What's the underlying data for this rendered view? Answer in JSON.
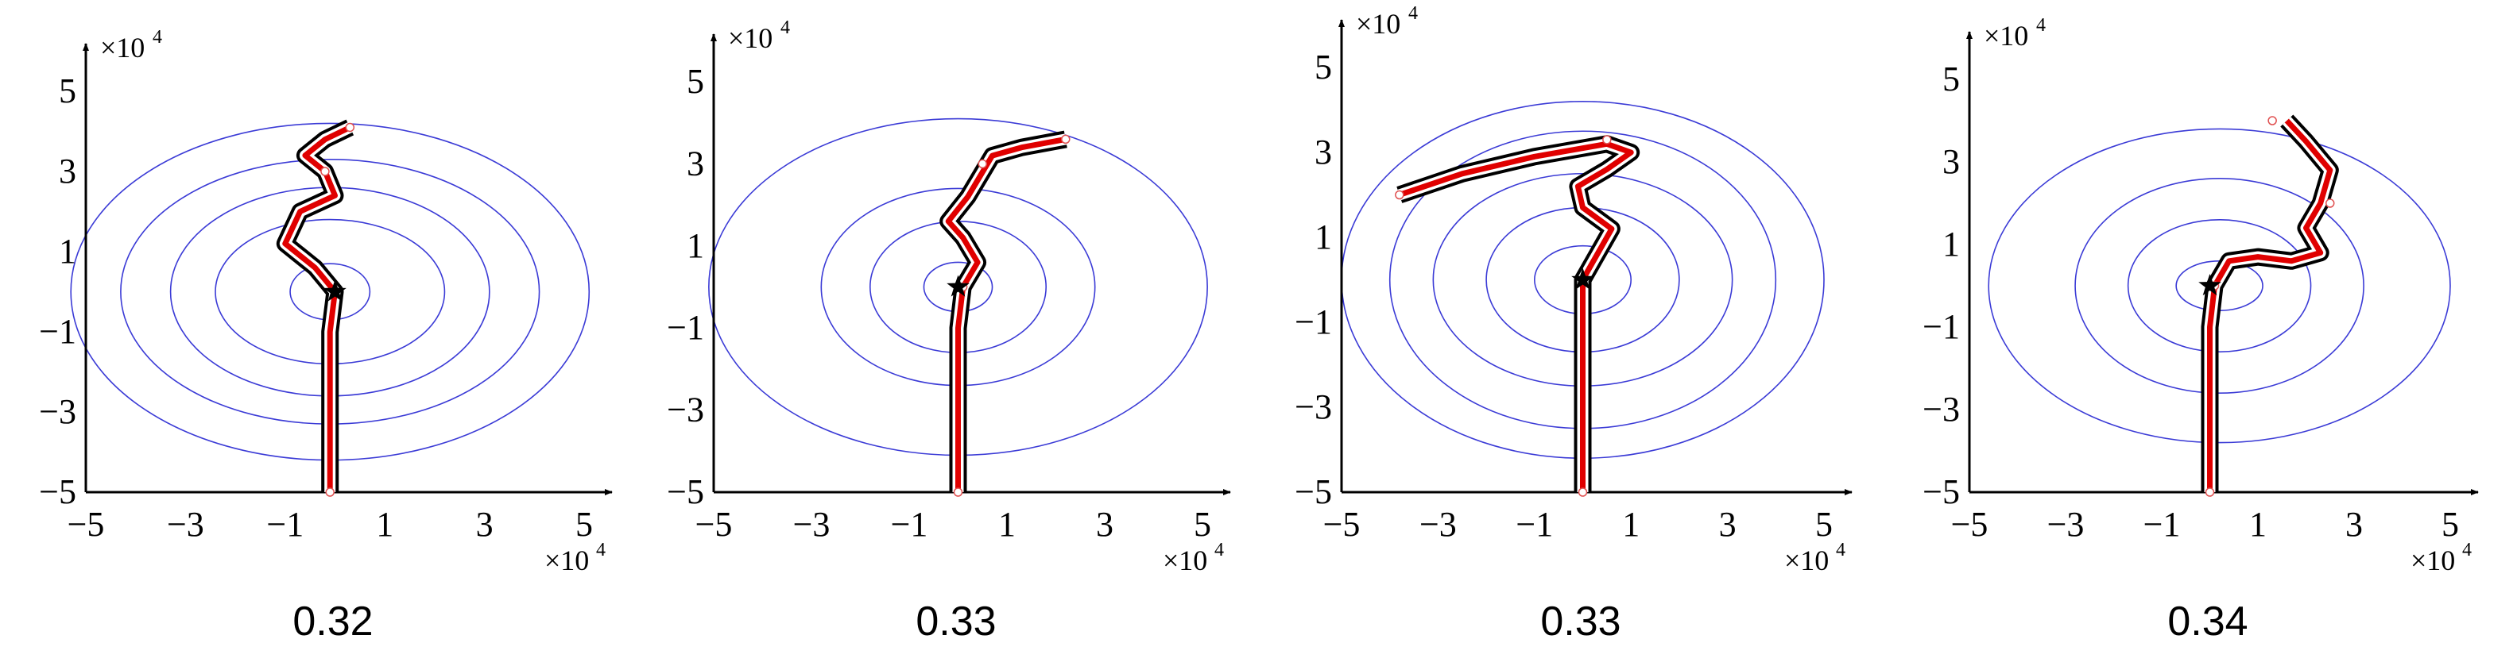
{
  "colors": {
    "contour": "#3b3bd6",
    "path_outer": "#000000",
    "path_inner": "#e00000",
    "waypoint": "#e05050",
    "axis": "#000000"
  },
  "chart_data": [
    {
      "type": "line",
      "caption": "0.32",
      "axis_multiplier_x": "×10",
      "axis_multiplier_y": "×10",
      "axis_exponent": "4",
      "xlim": [
        -5,
        5
      ],
      "ylim": [
        -5,
        5
      ],
      "xticks": [
        "−5",
        "−3",
        "−1",
        "1",
        "3",
        "5"
      ],
      "yticks": [
        "−5",
        "−3",
        "−1",
        "1",
        "3",
        "5"
      ],
      "contours": {
        "center": [
          -0.1,
          0.0
        ],
        "radii_x": [
          0.8,
          2.3,
          3.2,
          4.2,
          5.2
        ],
        "radii_y": [
          0.7,
          1.8,
          2.6,
          3.3,
          4.2
        ]
      },
      "start": [
        0.0,
        0.0
      ],
      "path": [
        [
          -0.1,
          -5.0
        ],
        [
          -0.1,
          -1.0
        ],
        [
          0.0,
          0.0
        ],
        [
          -0.4,
          0.6
        ],
        [
          -1.0,
          1.2
        ],
        [
          -0.7,
          2.0
        ],
        [
          0.0,
          2.4
        ],
        [
          -0.2,
          3.0
        ],
        [
          -0.6,
          3.4
        ],
        [
          -0.2,
          3.8
        ],
        [
          0.3,
          4.1
        ]
      ],
      "waypoints": [
        [
          -0.1,
          -5.0
        ],
        [
          0.0,
          0.0
        ],
        [
          -0.2,
          3.0
        ],
        [
          0.3,
          4.1
        ]
      ]
    },
    {
      "type": "line",
      "caption": "0.33",
      "axis_multiplier_x": "×10",
      "axis_multiplier_y": "×10",
      "axis_exponent": "4",
      "xlim": [
        -5,
        5
      ],
      "ylim": [
        -5,
        5
      ],
      "xticks": [
        "−5",
        "−3",
        "−1",
        "1",
        "3",
        "5"
      ],
      "yticks": [
        "−5",
        "−3",
        "−1",
        "1",
        "3",
        "5"
      ],
      "contours": {
        "center": [
          0.0,
          0.0
        ],
        "radii_x": [
          0.7,
          1.8,
          2.8,
          5.1
        ],
        "radii_y": [
          0.6,
          1.6,
          2.4,
          4.1
        ]
      },
      "start": [
        0.0,
        0.0
      ],
      "path": [
        [
          0.0,
          -5.0
        ],
        [
          0.0,
          -1.0
        ],
        [
          0.1,
          0.0
        ],
        [
          0.4,
          0.6
        ],
        [
          0.1,
          1.2
        ],
        [
          -0.2,
          1.6
        ],
        [
          0.2,
          2.2
        ],
        [
          0.5,
          2.8
        ],
        [
          0.7,
          3.2
        ],
        [
          1.3,
          3.4
        ],
        [
          2.2,
          3.6
        ]
      ],
      "waypoints": [
        [
          0.0,
          -5.0
        ],
        [
          0.1,
          0.0
        ],
        [
          0.5,
          3.0
        ],
        [
          2.2,
          3.6
        ]
      ]
    },
    {
      "type": "line",
      "caption": "0.33",
      "axis_multiplier_x": "×10",
      "axis_multiplier_y": "×10",
      "axis_exponent": "4",
      "xlim": [
        -5,
        5
      ],
      "ylim": [
        -5,
        5
      ],
      "xticks": [
        "−5",
        "−3",
        "−1",
        "1",
        "3",
        "5"
      ],
      "yticks": [
        "−5",
        "−3",
        "−1",
        "1",
        "3",
        "5"
      ],
      "contours": {
        "center": [
          0.0,
          0.0
        ],
        "radii_x": [
          1.0,
          2.0,
          3.1,
          4.0,
          5.0
        ],
        "radii_y": [
          0.8,
          1.7,
          2.5,
          3.5,
          4.2
        ]
      },
      "start": [
        0.0,
        0.0
      ],
      "path": [
        [
          0.0,
          -5.0
        ],
        [
          0.0,
          -1.0
        ],
        [
          0.0,
          0.0
        ],
        [
          0.3,
          0.6
        ],
        [
          0.6,
          1.2
        ],
        [
          0.0,
          1.7
        ],
        [
          -0.1,
          2.2
        ],
        [
          0.5,
          2.6
        ],
        [
          1.0,
          3.0
        ],
        [
          0.5,
          3.2
        ],
        [
          -1.0,
          2.9
        ],
        [
          -2.5,
          2.5
        ],
        [
          -3.8,
          2.0
        ]
      ],
      "waypoints": [
        [
          0.0,
          -5.0
        ],
        [
          0.0,
          0.0
        ],
        [
          0.5,
          3.3
        ],
        [
          -3.8,
          2.0
        ]
      ]
    },
    {
      "type": "line",
      "caption": "0.34",
      "axis_multiplier_x": "×10",
      "axis_multiplier_y": "×10",
      "axis_exponent": "4",
      "xlim": [
        -5,
        5
      ],
      "ylim": [
        -5,
        5
      ],
      "xticks": [
        "−5",
        "−3",
        "−1",
        "1",
        "3",
        "5"
      ],
      "yticks": [
        "−5",
        "−3",
        "−1",
        "1",
        "3",
        "5"
      ],
      "contours": {
        "center": [
          0.2,
          0.0
        ],
        "radii_x": [
          0.9,
          1.9,
          3.0,
          4.8
        ],
        "radii_y": [
          0.6,
          1.6,
          2.6,
          3.8
        ]
      },
      "start": [
        0.0,
        0.0
      ],
      "path": [
        [
          0.0,
          -5.0
        ],
        [
          0.0,
          -1.0
        ],
        [
          0.1,
          0.0
        ],
        [
          0.4,
          0.6
        ],
        [
          1.0,
          0.7
        ],
        [
          1.7,
          0.6
        ],
        [
          2.3,
          0.8
        ],
        [
          2.0,
          1.4
        ],
        [
          2.3,
          2.0
        ],
        [
          2.5,
          2.8
        ],
        [
          2.0,
          3.5
        ],
        [
          1.6,
          4.0
        ]
      ],
      "waypoints": [
        [
          0.0,
          -5.0
        ],
        [
          0.1,
          0.0
        ],
        [
          2.5,
          2.0
        ],
        [
          1.3,
          4.0
        ]
      ]
    }
  ]
}
